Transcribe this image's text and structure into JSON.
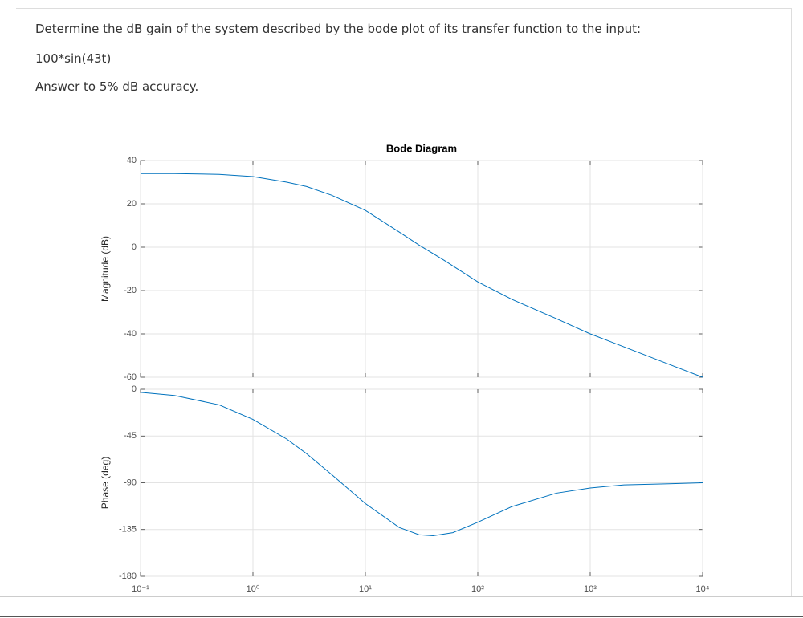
{
  "question": {
    "prompt": "Determine the dB gain of the system described by the bode plot of its transfer function to the input:",
    "input": "100*sin(43t)",
    "instruction": "Answer to 5% dB accuracy."
  },
  "chart_data": [
    {
      "type": "line",
      "title": "Bode Diagram",
      "y_label": "Magnitude (dB)",
      "xscale": "log",
      "grid": true,
      "color": "#0072bd",
      "x": [
        0.1,
        0.2,
        0.5,
        1,
        2,
        3,
        5,
        10,
        20,
        30,
        50,
        100,
        200,
        500,
        1000,
        2000,
        5000,
        10000
      ],
      "values": [
        34,
        34,
        33.6,
        32.6,
        30,
        28,
        24,
        17,
        7,
        1,
        -6,
        -16,
        -24,
        -33,
        -40,
        -46,
        -54,
        -60
      ],
      "xlim": [
        0.1,
        10000
      ],
      "xticks": [
        0.1,
        1,
        10,
        100,
        1000,
        10000
      ],
      "ylim": [
        -60,
        40
      ],
      "yticks": [
        40,
        20,
        0,
        -20,
        -40,
        -60
      ]
    },
    {
      "type": "line",
      "y_label": "Phase (deg)",
      "xscale": "log",
      "grid": true,
      "color": "#0072bd",
      "x": [
        0.1,
        0.2,
        0.5,
        1,
        2,
        3,
        5,
        10,
        20,
        30,
        40,
        60,
        100,
        200,
        500,
        1000,
        2000,
        5000,
        10000
      ],
      "values": [
        -3,
        -6,
        -15,
        -29,
        -48,
        -62,
        -82,
        -110,
        -133,
        -140,
        -141,
        -138,
        -128,
        -113,
        -100,
        -95,
        -92,
        -91,
        -90
      ],
      "xlim": [
        0.1,
        10000
      ],
      "xticks": [
        {
          "value": 0.1,
          "label": "10⁻¹"
        },
        {
          "value": 1,
          "label": "10⁰"
        },
        {
          "value": 10,
          "label": "10¹"
        },
        {
          "value": 100,
          "label": "10²"
        },
        {
          "value": 1000,
          "label": "10³"
        },
        {
          "value": 10000,
          "label": "10⁴"
        }
      ],
      "ylim": [
        -180,
        0
      ],
      "yticks": [
        0,
        -45,
        -90,
        -135,
        -180
      ]
    }
  ]
}
